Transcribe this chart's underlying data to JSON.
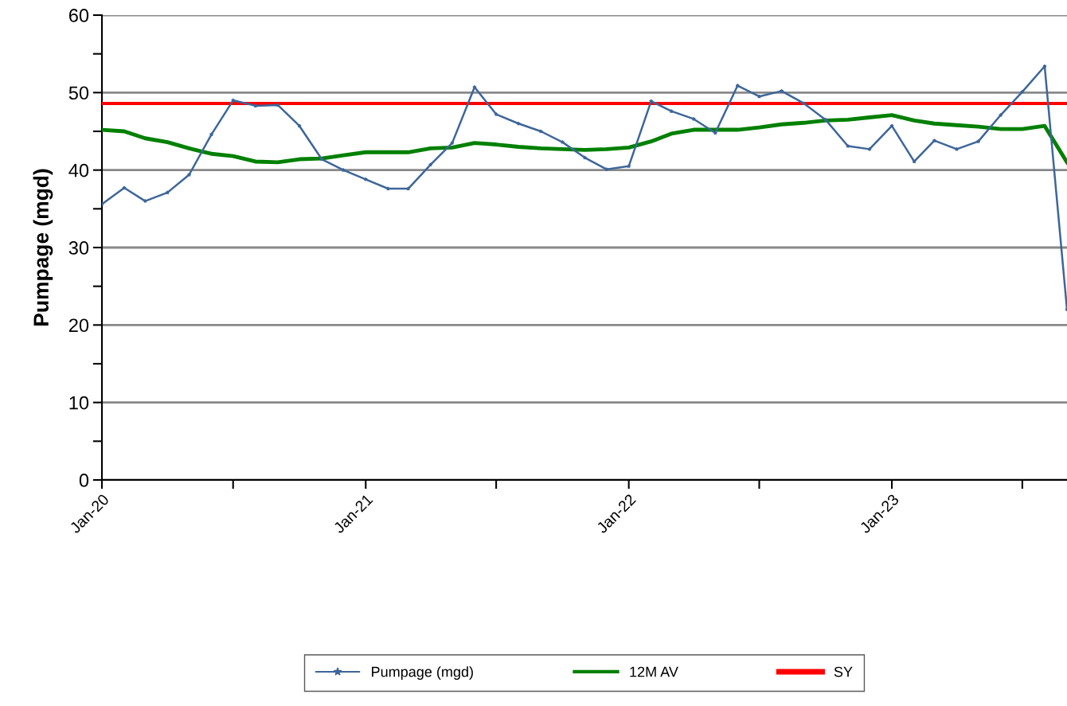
{
  "chart_data": {
    "type": "line",
    "ylabel": "Pumpage (mgd)",
    "x": [
      "2020-01",
      "2020-02",
      "2020-03",
      "2020-04",
      "2020-05",
      "2020-06",
      "2020-07",
      "2020-08",
      "2020-09",
      "2020-10",
      "2020-11",
      "2020-12",
      "2021-01",
      "2021-02",
      "2021-03",
      "2021-04",
      "2021-05",
      "2021-06",
      "2021-07",
      "2021-08",
      "2021-09",
      "2021-10",
      "2021-11",
      "2021-12",
      "2022-01",
      "2022-02",
      "2022-03",
      "2022-04",
      "2022-05",
      "2022-06",
      "2022-07",
      "2022-08",
      "2022-09",
      "2022-10",
      "2022-11",
      "2022-12",
      "2023-01",
      "2023-02",
      "2023-03",
      "2023-04",
      "2023-05",
      "2023-06",
      "2023-07",
      "2023-08",
      "2023-09"
    ],
    "series": [
      {
        "name": "Pumpage (mgd)",
        "color": "#3d6699",
        "marker": "star",
        "values": [
          35.6,
          37.7,
          36.0,
          37.1,
          39.4,
          44.6,
          49.0,
          48.3,
          48.4,
          45.7,
          41.4,
          40.0,
          38.8,
          37.6,
          37.6,
          40.7,
          43.5,
          50.7,
          47.2,
          46.0,
          45.0,
          43.6,
          41.6,
          40.1,
          40.5,
          48.9,
          47.6,
          46.6,
          44.8,
          50.9,
          49.5,
          50.2,
          48.6,
          46.5,
          43.1,
          42.7,
          45.7,
          41.1,
          43.8,
          42.7,
          43.7,
          47.1,
          50.1,
          53.4,
          22.0
        ]
      },
      {
        "name": "12M AV",
        "color": "#008000",
        "values": [
          45.2,
          45.0,
          44.1,
          43.6,
          42.8,
          42.1,
          41.8,
          41.1,
          41.0,
          41.4,
          41.5,
          41.9,
          42.3,
          42.3,
          42.3,
          42.8,
          42.9,
          43.5,
          43.3,
          43.0,
          42.8,
          42.7,
          42.6,
          42.7,
          42.9,
          43.7,
          44.7,
          45.2,
          45.2,
          45.2,
          45.5,
          45.9,
          46.1,
          46.4,
          46.5,
          46.8,
          47.1,
          46.4,
          46.0,
          45.8,
          45.6,
          45.3,
          45.3,
          45.7,
          41.0
        ]
      },
      {
        "name": "SY",
        "color": "#ff0000",
        "x": [
          "2020-01",
          "2023-09"
        ],
        "values": [
          48.6,
          48.6
        ]
      }
    ],
    "xlim": [
      "2020-01",
      "2023-09"
    ],
    "xticks": [
      {
        "value": "2020-01",
        "label": "Jan-20"
      },
      {
        "value": "2020-07",
        "label": null
      },
      {
        "value": "2021-01",
        "label": "Jan-21"
      },
      {
        "value": "2021-07",
        "label": null
      },
      {
        "value": "2022-01",
        "label": "Jan-22"
      },
      {
        "value": "2022-07",
        "label": null
      },
      {
        "value": "2023-01",
        "label": "Jan-23"
      },
      {
        "value": "2023-07",
        "label": null
      }
    ],
    "ylim": [
      0,
      60
    ],
    "yticks": [
      0,
      {
        "value": 5,
        "label": null
      },
      10,
      {
        "value": 15,
        "label": null
      },
      20,
      {
        "value": 25,
        "label": null
      },
      30,
      {
        "value": 35,
        "label": null
      },
      40,
      {
        "value": 45,
        "label": null
      },
      50,
      {
        "value": 55,
        "label": null
      },
      60
    ],
    "grid": "y",
    "legend": "bottom",
    "line_style": "solid"
  }
}
